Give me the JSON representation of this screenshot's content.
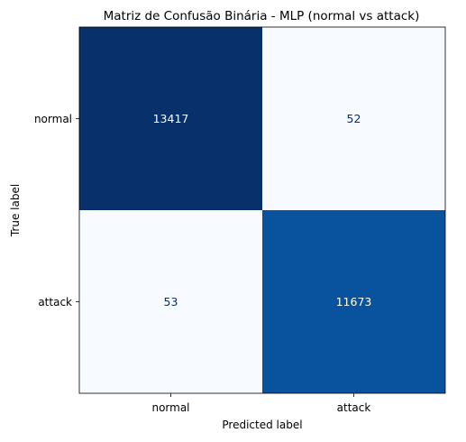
{
  "chart_data": {
    "type": "heatmap",
    "title": "Matriz de Confusão Binária - MLP (normal vs attack)",
    "xlabel": "Predicted label",
    "ylabel": "True label",
    "row_labels": [
      "normal",
      "attack"
    ],
    "col_labels": [
      "normal",
      "attack"
    ],
    "values": [
      [
        13417,
        52
      ],
      [
        53,
        11673
      ]
    ],
    "colormap": "Blues",
    "colorbar": false,
    "grid": false
  }
}
